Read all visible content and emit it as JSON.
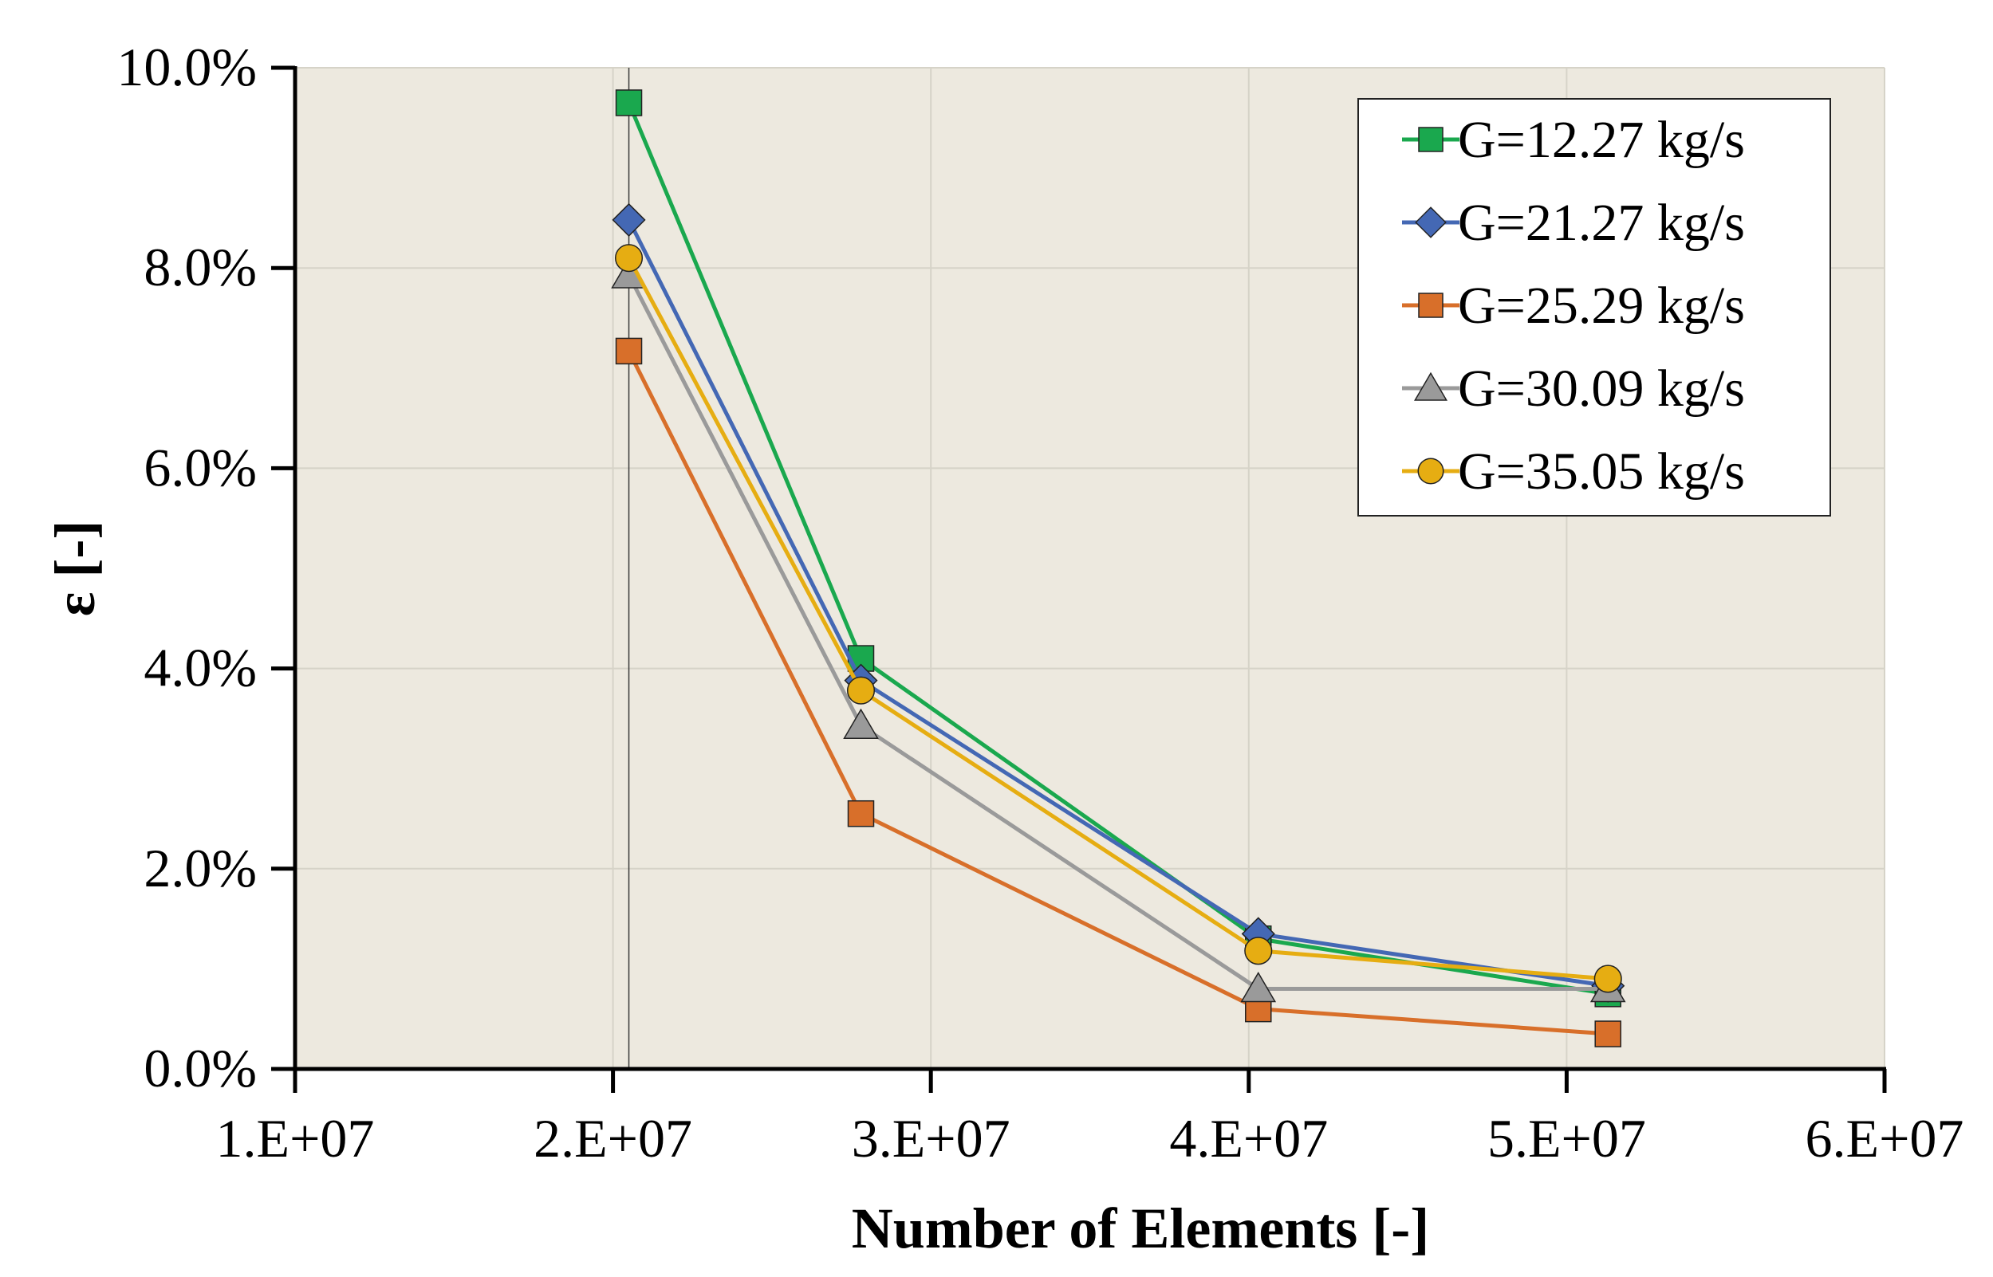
{
  "chart_data": {
    "type": "line",
    "title": "",
    "xlabel": "Number of Elements [-]",
    "ylabel": "ε [-]",
    "xlim": [
      10000000,
      60000000
    ],
    "ylim": [
      0,
      0.1
    ],
    "x_ticks": [
      {
        "value": 10000000,
        "label": "1.E+07"
      },
      {
        "value": 20000000,
        "label": "2.E+07"
      },
      {
        "value": 30000000,
        "label": "3.E+07"
      },
      {
        "value": 40000000,
        "label": "4.E+07"
      },
      {
        "value": 50000000,
        "label": "5.E+07"
      },
      {
        "value": 60000000,
        "label": "6.E+07"
      }
    ],
    "y_ticks": [
      {
        "value": 0.0,
        "label": "0.0%"
      },
      {
        "value": 0.02,
        "label": "2.0%"
      },
      {
        "value": 0.04,
        "label": "4.0%"
      },
      {
        "value": 0.06,
        "label": "6.0%"
      },
      {
        "value": 0.08,
        "label": "8.0%"
      },
      {
        "value": 0.1,
        "label": "10.0%"
      }
    ],
    "grid": true,
    "legend_position": "top-right",
    "x": [
      20500000,
      27800000,
      40300000,
      51300000
    ],
    "series": [
      {
        "name": "G=12.27 kg/s",
        "color": "#1aa84e",
        "marker": "square",
        "values": [
          0.0965,
          0.041,
          0.013,
          0.0075
        ]
      },
      {
        "name": "G=21.27 kg/s",
        "color": "#4468b4",
        "marker": "diamond",
        "values": [
          0.0848,
          0.0388,
          0.0135,
          0.0083
        ]
      },
      {
        "name": "G=25.29 kg/s",
        "color": "#d86f2a",
        "marker": "square",
        "values": [
          0.0717,
          0.0255,
          0.006,
          0.0035
        ]
      },
      {
        "name": "G=30.09 kg/s",
        "color": "#9a9a9a",
        "marker": "triangle",
        "values": [
          0.0793,
          0.0343,
          0.008,
          0.008
        ]
      },
      {
        "name": "G=35.05 kg/s",
        "color": "#e6ad12",
        "marker": "circle",
        "values": [
          0.081,
          0.0378,
          0.0118,
          0.009
        ]
      }
    ],
    "colors": {
      "plot_background": "#ede9df",
      "gridline": "#d6d3c8",
      "axis": "#000000"
    }
  }
}
